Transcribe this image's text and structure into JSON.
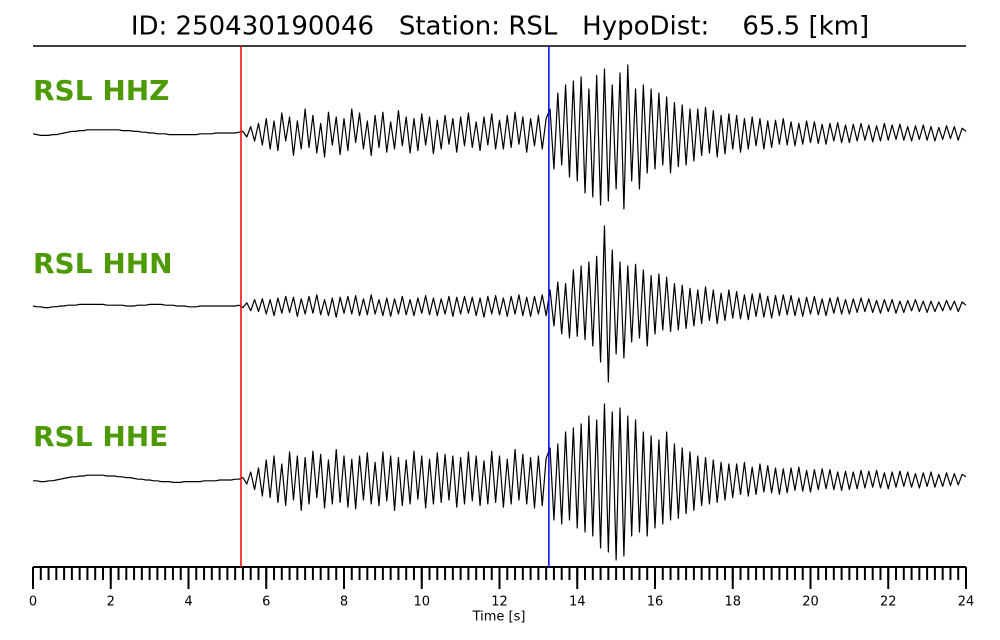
{
  "chart_data": {
    "type": "line",
    "title": "ID: 250430190046   Station: RSL   HypoDist:    65.5 [km]",
    "xlabel": "Time [s]",
    "label_color": "#4e9a06",
    "xlim": [
      0,
      24
    ],
    "xticks": [
      0,
      2,
      4,
      6,
      8,
      10,
      12,
      14,
      16,
      18,
      20,
      22,
      24
    ],
    "xminorticks": [
      0,
      0.2,
      0.4,
      0.6,
      0.8,
      1,
      1.2,
      1.4,
      1.6,
      1.8,
      2,
      2.2,
      2.4,
      2.6,
      2.8,
      3,
      3.2,
      3.4,
      3.6,
      3.8,
      4,
      4.2,
      4.4,
      4.6,
      4.8,
      5,
      5.2,
      5.4,
      5.6,
      5.8,
      6,
      6.2,
      6.4,
      6.6,
      6.8,
      7,
      7.2,
      7.4,
      7.6,
      7.8,
      8,
      8.2,
      8.4,
      8.6,
      8.8,
      9,
      9.2,
      9.4,
      9.6,
      9.8,
      10,
      10.2,
      10.4,
      10.6,
      10.8,
      11,
      11.2,
      11.4,
      11.6,
      11.8,
      12,
      12.2,
      12.4,
      12.6,
      12.8,
      13,
      13.2,
      13.4,
      13.6,
      13.8,
      14,
      14.2,
      14.4,
      14.6,
      14.8,
      15,
      15.2,
      15.4,
      15.6,
      15.8,
      16,
      16.2,
      16.4,
      16.6,
      16.8,
      17,
      17.2,
      17.4,
      17.6,
      17.8,
      18,
      18.2,
      18.4,
      18.6,
      18.8,
      19,
      19.2,
      19.4,
      19.6,
      19.8,
      20,
      20.2,
      20.4,
      20.6,
      20.8,
      21,
      21.2,
      21.4,
      21.6,
      21.8,
      22,
      22.2,
      22.4,
      22.6,
      22.8,
      23,
      23.2,
      23.4,
      23.6,
      23.8,
      24
    ],
    "vlines": [
      {
        "x": 5.35,
        "color": "#ff0000"
      },
      {
        "x": 13.27,
        "color": "#0000ff"
      }
    ],
    "x": [
      0,
      0.1,
      0.2,
      0.3,
      0.4,
      0.5,
      0.6,
      0.7,
      0.8,
      0.9,
      1,
      1.1,
      1.2,
      1.3,
      1.4,
      1.5,
      1.6,
      1.7,
      1.8,
      1.9,
      2,
      2.1,
      2.2,
      2.3,
      2.4,
      2.5,
      2.6,
      2.7,
      2.8,
      2.9,
      3,
      3.1,
      3.2,
      3.3,
      3.4,
      3.5,
      3.6,
      3.7,
      3.8,
      3.9,
      4,
      4.1,
      4.2,
      4.3,
      4.4,
      4.5,
      4.6,
      4.7,
      4.8,
      4.9,
      5,
      5.1,
      5.2,
      5.3,
      5.4,
      5.5,
      5.6,
      5.7,
      5.8,
      5.9,
      6,
      6.1,
      6.2,
      6.3,
      6.4,
      6.5,
      6.6,
      6.7,
      6.8,
      6.9,
      7,
      7.1,
      7.2,
      7.3,
      7.4,
      7.5,
      7.6,
      7.7,
      7.8,
      7.9,
      8,
      8.1,
      8.2,
      8.3,
      8.4,
      8.5,
      8.6,
      8.7,
      8.8,
      8.9,
      9,
      9.1,
      9.2,
      9.3,
      9.4,
      9.5,
      9.6,
      9.7,
      9.8,
      9.9,
      10,
      10.1,
      10.2,
      10.3,
      10.4,
      10.5,
      10.6,
      10.7,
      10.8,
      10.9,
      11,
      11.1,
      11.2,
      11.3,
      11.4,
      11.5,
      11.6,
      11.7,
      11.8,
      11.9,
      12,
      12.1,
      12.2,
      12.3,
      12.4,
      12.5,
      12.6,
      12.7,
      12.8,
      12.9,
      13,
      13.1,
      13.2,
      13.3,
      13.4,
      13.5,
      13.6,
      13.7,
      13.8,
      13.9,
      14,
      14.1,
      14.2,
      14.3,
      14.4,
      14.5,
      14.6,
      14.7,
      14.8,
      14.9,
      15,
      15.1,
      15.2,
      15.3,
      15.4,
      15.5,
      15.6,
      15.7,
      15.8,
      15.9,
      16,
      16.1,
      16.2,
      16.3,
      16.4,
      16.5,
      16.6,
      16.7,
      16.8,
      16.9,
      17,
      17.1,
      17.2,
      17.3,
      17.4,
      17.5,
      17.6,
      17.7,
      17.8,
      17.9,
      18,
      18.1,
      18.2,
      18.3,
      18.4,
      18.5,
      18.6,
      18.7,
      18.8,
      18.9,
      19,
      19.1,
      19.2,
      19.3,
      19.4,
      19.5,
      19.6,
      19.7,
      19.8,
      19.9,
      20,
      20.1,
      20.2,
      20.3,
      20.4,
      20.5,
      20.6,
      20.7,
      20.8,
      20.9,
      21,
      21.1,
      21.2,
      21.3,
      21.4,
      21.5,
      21.6,
      21.7,
      21.8,
      21.9,
      22,
      22.1,
      22.2,
      22.3,
      22.4,
      22.5,
      22.6,
      22.7,
      22.8,
      22.9,
      23,
      23.1,
      23.2,
      23.3,
      23.4,
      23.5,
      23.6,
      23.7,
      23.8,
      23.9,
      24
    ],
    "series": [
      {
        "name": "RSL HHZ",
        "color": "#000000",
        "values": [
          -0.01,
          -0.02,
          -0.03,
          -0.03,
          -0.03,
          -0.02,
          -0.02,
          -0.01,
          0,
          0.01,
          0.02,
          0.02,
          0.03,
          0.03,
          0.04,
          0.04,
          0.04,
          0.04,
          0.04,
          0.04,
          0.04,
          0.04,
          0.04,
          0.03,
          0.03,
          0.03,
          0.02,
          0.02,
          0.01,
          0.01,
          0,
          0,
          -0.01,
          -0.01,
          -0.01,
          -0.02,
          -0.02,
          -0.02,
          -0.02,
          -0.02,
          -0.02,
          -0.02,
          -0.02,
          -0.01,
          -0.01,
          -0.01,
          -0.01,
          0,
          0,
          0,
          0,
          0,
          0,
          0.01,
          0.02,
          -0.05,
          0.08,
          -0.1,
          0.12,
          -0.15,
          0.18,
          -0.2,
          0.15,
          -0.22,
          0.25,
          -0.1,
          0.2,
          -0.28,
          0.15,
          -0.2,
          0.3,
          -0.18,
          0.22,
          -0.25,
          0.12,
          -0.3,
          0.26,
          -0.15,
          0.2,
          -0.27,
          0.18,
          -0.22,
          0.3,
          -0.12,
          0.25,
          -0.2,
          0.15,
          -0.28,
          0.22,
          -0.18,
          0.26,
          -0.24,
          0.14,
          -0.2,
          0.28,
          -0.16,
          0.2,
          -0.25,
          0.18,
          -0.22,
          0.24,
          -0.15,
          0.2,
          -0.26,
          0.16,
          -0.2,
          0.22,
          -0.14,
          0.18,
          -0.24,
          0.2,
          -0.16,
          0.25,
          -0.18,
          0.14,
          -0.22,
          0.2,
          -0.15,
          0.24,
          -0.2,
          0.16,
          -0.2,
          0.22,
          -0.18,
          0.26,
          -0.14,
          0.2,
          -0.24,
          0.18,
          -0.16,
          0.22,
          -0.2,
          0.18,
          0.3,
          -0.45,
          0.5,
          -0.4,
          0.6,
          -0.55,
          0.65,
          -0.6,
          0.7,
          -0.75,
          0.55,
          -0.8,
          0.72,
          -0.9,
          0.8,
          -0.85,
          0.6,
          -0.7,
          0.75,
          -0.95,
          0.85,
          -0.6,
          0.55,
          -0.7,
          0.6,
          -0.5,
          0.55,
          -0.45,
          0.5,
          -0.4,
          0.45,
          -0.5,
          0.38,
          -0.42,
          0.35,
          -0.4,
          0.3,
          -0.35,
          0.3,
          -0.28,
          0.32,
          -0.25,
          0.28,
          -0.3,
          0.22,
          -0.26,
          0.24,
          -0.2,
          0.22,
          -0.24,
          0.18,
          -0.2,
          0.2,
          -0.16,
          0.18,
          -0.2,
          0.15,
          -0.18,
          0.16,
          -0.14,
          0.18,
          -0.15,
          0.14,
          -0.16,
          0.12,
          -0.14,
          0.15,
          -0.12,
          0.14,
          -0.13,
          0.11,
          -0.14,
          0.12,
          -0.1,
          0.13,
          -0.12,
          0.1,
          -0.12,
          0.11,
          -0.1,
          0.12,
          -0.09,
          0.1,
          -0.11,
          0.09,
          -0.1,
          0.12,
          -0.09,
          0.1,
          -0.08,
          0.11,
          -0.09,
          0.08,
          -0.1,
          0.09,
          -0.08,
          0.1,
          -0.09,
          0.08,
          -0.1,
          0.07,
          -0.08,
          0.09,
          -0.07,
          0.08,
          -0.09,
          0.06,
          0.02
        ]
      },
      {
        "name": "RSL HHN",
        "color": "#000000",
        "values": [
          0,
          -0.01,
          -0.01,
          -0.02,
          -0.02,
          -0.01,
          -0.01,
          0,
          0,
          0.01,
          0.01,
          0.01,
          0.02,
          0.02,
          0.02,
          0.02,
          0.02,
          0.02,
          0.02,
          0.01,
          0.01,
          0.01,
          0.01,
          0.01,
          0,
          0,
          0,
          0.01,
          0.01,
          0.01,
          0.02,
          0.02,
          0.02,
          0.02,
          0.01,
          0.01,
          0.01,
          0,
          0,
          0,
          -0.01,
          -0.01,
          -0.01,
          0,
          0,
          0,
          0,
          0,
          0,
          0,
          0,
          0,
          0,
          0.01,
          -0.02,
          0.04,
          -0.06,
          0.08,
          -0.07,
          0.09,
          -0.1,
          0.08,
          -0.12,
          0.1,
          -0.09,
          0.12,
          -0.08,
          0.11,
          -0.13,
          0.09,
          -0.1,
          0.12,
          -0.09,
          0.14,
          -0.11,
          0.08,
          -0.12,
          0.1,
          -0.14,
          0.11,
          -0.09,
          0.12,
          -0.1,
          0.13,
          -0.12,
          0.09,
          -0.11,
          0.14,
          -0.1,
          0.08,
          -0.12,
          0.1,
          -0.13,
          0.09,
          -0.1,
          0.12,
          -0.11,
          0.08,
          -0.12,
          0.1,
          -0.09,
          0.13,
          -0.11,
          0.1,
          -0.12,
          0.09,
          -0.1,
          0.12,
          -0.13,
          0.11,
          -0.1,
          0.12,
          -0.09,
          0.11,
          -0.12,
          0.1,
          -0.14,
          0.12,
          -0.1,
          0.13,
          -0.11,
          0.1,
          -0.13,
          0.12,
          -0.1,
          0.14,
          -0.12,
          0.11,
          -0.13,
          0.12,
          -0.1,
          0.14,
          -0.12,
          0.2,
          -0.25,
          0.3,
          -0.35,
          0.28,
          -0.4,
          0.45,
          -0.38,
          0.5,
          -0.42,
          0.55,
          -0.5,
          0.62,
          -0.7,
          1.0,
          -0.95,
          0.7,
          -0.6,
          0.55,
          -0.65,
          0.5,
          -0.45,
          0.52,
          -0.4,
          0.45,
          -0.5,
          0.38,
          -0.35,
          0.4,
          -0.3,
          0.36,
          -0.32,
          0.28,
          -0.3,
          0.26,
          -0.28,
          0.22,
          -0.25,
          0.2,
          -0.22,
          0.24,
          -0.18,
          0.2,
          -0.22,
          0.16,
          -0.18,
          0.2,
          -0.15,
          0.18,
          -0.16,
          0.14,
          -0.17,
          0.15,
          -0.13,
          0.16,
          -0.14,
          0.12,
          -0.15,
          0.13,
          -0.12,
          0.14,
          -0.11,
          0.13,
          -0.12,
          0.1,
          -0.13,
          0.11,
          -0.1,
          0.12,
          -0.11,
          0.09,
          -0.12,
          0.1,
          -0.09,
          0.11,
          -0.1,
          0.08,
          -0.1,
          0.09,
          -0.08,
          0.1,
          -0.07,
          0.09,
          -0.08,
          0.07,
          -0.09,
          0.08,
          -0.07,
          0.08,
          -0.09,
          0.06,
          -0.08,
          0.07,
          -0.06,
          0.08,
          -0.07,
          0.06,
          -0.08,
          0.06,
          -0.07,
          0.05,
          -0.06,
          0.07,
          -0.05,
          0.06,
          -0.07,
          0.05,
          0.01
        ]
      },
      {
        "name": "RSL HHE",
        "color": "#000000",
        "values": [
          -0.01,
          -0.01,
          -0.02,
          -0.02,
          -0.01,
          -0.01,
          0,
          0.01,
          0.02,
          0.03,
          0.04,
          0.04,
          0.05,
          0.05,
          0.06,
          0.06,
          0.06,
          0.06,
          0.06,
          0.05,
          0.05,
          0.05,
          0.04,
          0.04,
          0.03,
          0.03,
          0.02,
          0.01,
          0.01,
          0,
          0,
          -0.01,
          -0.01,
          -0.02,
          -0.02,
          -0.02,
          -0.03,
          -0.03,
          -0.03,
          -0.02,
          -0.02,
          -0.02,
          -0.02,
          -0.02,
          -0.01,
          -0.01,
          -0.01,
          -0.01,
          0,
          0,
          0,
          0,
          0.01,
          0.01,
          0.03,
          -0.05,
          0.1,
          -0.12,
          0.15,
          -0.2,
          0.25,
          -0.22,
          0.3,
          -0.28,
          0.2,
          -0.32,
          0.35,
          -0.25,
          0.3,
          -0.38,
          0.28,
          -0.3,
          0.36,
          -0.22,
          0.32,
          -0.35,
          0.25,
          -0.3,
          0.38,
          -0.28,
          0.3,
          -0.34,
          0.26,
          -0.36,
          0.3,
          -0.25,
          0.34,
          -0.3,
          0.22,
          -0.32,
          0.35,
          -0.26,
          0.3,
          -0.38,
          0.28,
          -0.32,
          0.25,
          -0.3,
          0.36,
          -0.24,
          0.3,
          -0.35,
          0.26,
          -0.3,
          0.34,
          -0.28,
          0.32,
          -0.25,
          0.3,
          -0.34,
          0.28,
          -0.3,
          0.35,
          -0.26,
          0.3,
          -0.32,
          0.24,
          -0.3,
          0.36,
          -0.28,
          0.3,
          -0.34,
          0.26,
          -0.3,
          0.38,
          -0.25,
          0.32,
          -0.3,
          0.28,
          -0.35,
          0.3,
          -0.32,
          0.27,
          0.4,
          -0.5,
          0.45,
          -0.55,
          0.6,
          -0.5,
          0.65,
          -0.6,
          0.7,
          -0.65,
          0.8,
          -0.7,
          0.75,
          -0.85,
          0.95,
          -0.9,
          0.85,
          -1.0,
          0.9,
          -0.95,
          0.8,
          -0.7,
          0.75,
          -0.65,
          0.6,
          -0.7,
          0.55,
          -0.6,
          0.5,
          -0.55,
          0.6,
          -0.5,
          0.45,
          -0.48,
          0.4,
          -0.42,
          0.35,
          -0.38,
          0.3,
          -0.32,
          0.28,
          -0.3,
          0.25,
          -0.28,
          0.22,
          -0.25,
          0.2,
          -0.22,
          0.2,
          -0.18,
          0.22,
          -0.2,
          0.16,
          -0.18,
          0.2,
          -0.15,
          0.18,
          -0.16,
          0.15,
          -0.18,
          0.14,
          -0.16,
          0.15,
          -0.13,
          0.16,
          -0.14,
          0.12,
          -0.15,
          0.13,
          -0.12,
          0.14,
          -0.11,
          0.13,
          -0.12,
          0.1,
          -0.13,
          0.11,
          -0.12,
          0.1,
          -0.11,
          0.12,
          -0.1,
          0.11,
          -0.09,
          0.12,
          -0.1,
          0.09,
          -0.11,
          0.1,
          -0.09,
          0.11,
          -0.08,
          0.1,
          -0.09,
          0.08,
          -0.1,
          0.09,
          -0.08,
          0.1,
          -0.09,
          0.07,
          -0.08,
          0.09,
          -0.07,
          0.08,
          -0.06,
          0.07,
          0.04
        ]
      }
    ]
  }
}
